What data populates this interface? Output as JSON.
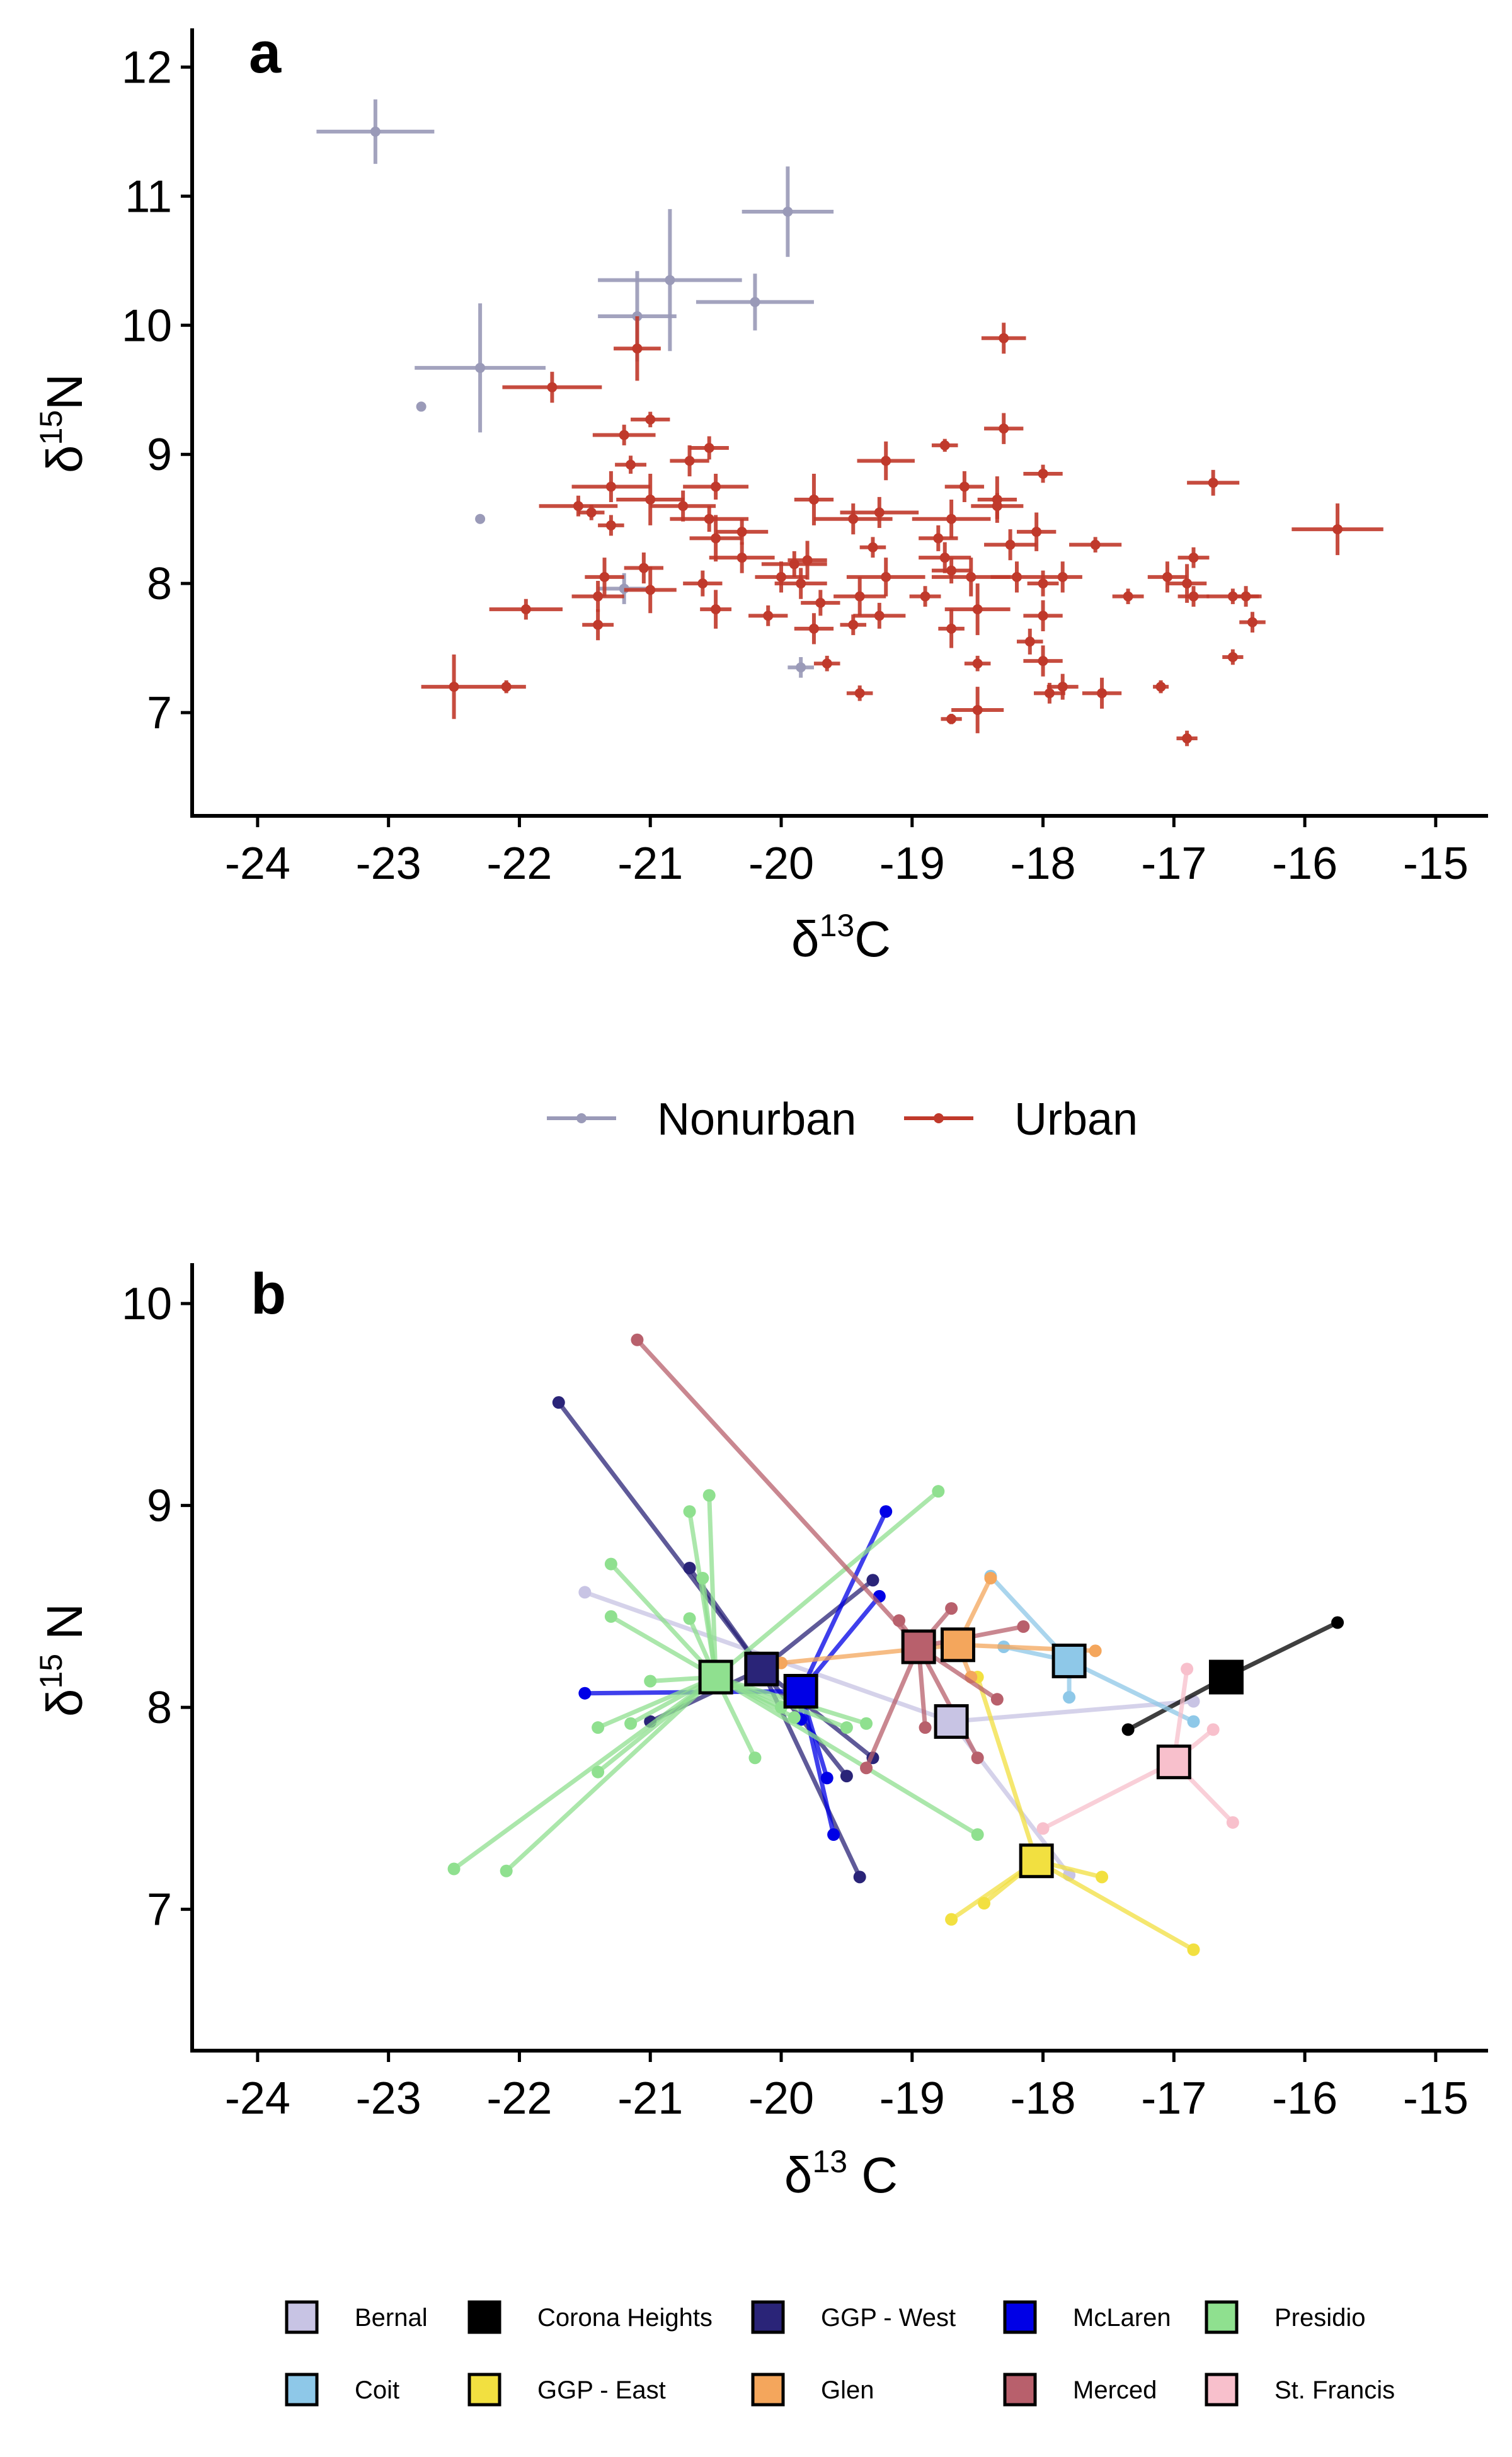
{
  "chart_data": [
    {
      "panel": "a",
      "type": "scatter",
      "xlabel": "δ13C",
      "ylabel": "δ15N",
      "xlim": [
        -24.5,
        -14.6
      ],
      "ylim": [
        6.2,
        12.3
      ],
      "xticks": [
        -24,
        -23,
        -22,
        -21,
        -20,
        -19,
        -18,
        -17,
        -16,
        -15
      ],
      "yticks": [
        7,
        8,
        9,
        10,
        11,
        12
      ],
      "legend": {
        "position": "bottom",
        "entries": [
          "Nonurban",
          "Urban"
        ]
      },
      "series": [
        {
          "name": "Nonurban",
          "color": "#9a9ab8",
          "points": [
            [
              -23.1,
              11.5,
              0.45,
              0.25
            ],
            [
              -22.3,
              9.67,
              0.5,
              0.5
            ],
            [
              -22.75,
              9.37,
              0,
              0
            ],
            [
              -22.3,
              8.5,
              0,
              0
            ],
            [
              -21.1,
              10.07,
              0.3,
              0.35
            ],
            [
              -20.85,
              10.35,
              0.55,
              0.55
            ],
            [
              -20.2,
              10.18,
              0.45,
              0.22
            ],
            [
              -19.95,
              10.88,
              0.35,
              0.35
            ],
            [
              -21.2,
              7.96,
              0.2,
              0.12
            ],
            [
              -19.85,
              7.35,
              0.1,
              0.08
            ]
          ]
        },
        {
          "name": "Urban",
          "color": "#c0392b",
          "points": [
            [
              -21.1,
              9.82,
              0.18,
              0.25
            ],
            [
              -21.75,
              9.52,
              0.38,
              0.12
            ],
            [
              -18.3,
              9.9,
              0.17,
              0.12
            ],
            [
              -21.2,
              9.15,
              0.24,
              0.08
            ],
            [
              -21.0,
              9.27,
              0.15,
              0.06
            ],
            [
              -21.15,
              8.92,
              0.12,
              0.07
            ],
            [
              -21.3,
              8.75,
              0.3,
              0.12
            ],
            [
              -21.0,
              8.65,
              0.26,
              0.2
            ],
            [
              -21.55,
              8.6,
              0.3,
              0.08
            ],
            [
              -21.45,
              8.55,
              0.1,
              0.06
            ],
            [
              -21.3,
              8.45,
              0.1,
              0.08
            ],
            [
              -21.35,
              8.05,
              0.15,
              0.15
            ],
            [
              -21.4,
              7.9,
              0.2,
              0.12
            ],
            [
              -21.4,
              7.68,
              0.12,
              0.12
            ],
            [
              -21.0,
              7.95,
              0.2,
              0.18
            ],
            [
              -21.05,
              8.12,
              0.15,
              0.12
            ],
            [
              -20.7,
              8.95,
              0.15,
              0.12
            ],
            [
              -20.55,
              9.05,
              0.15,
              0.09
            ],
            [
              -20.5,
              8.75,
              0.25,
              0.1
            ],
            [
              -20.75,
              8.6,
              0.25,
              0.12
            ],
            [
              -20.55,
              8.5,
              0.3,
              0.1
            ],
            [
              -20.3,
              8.4,
              0.2,
              0.1
            ],
            [
              -20.5,
              8.35,
              0.2,
              0.18
            ],
            [
              -20.3,
              8.2,
              0.25,
              0.12
            ],
            [
              -20.6,
              8.0,
              0.15,
              0.1
            ],
            [
              -20.5,
              7.8,
              0.12,
              0.15
            ],
            [
              -20.1,
              7.75,
              0.15,
              0.08
            ],
            [
              -20.0,
              8.05,
              0.2,
              0.12
            ],
            [
              -19.9,
              8.15,
              0.25,
              0.1
            ],
            [
              -19.85,
              8.0,
              0.2,
              0.12
            ],
            [
              -19.75,
              8.65,
              0.15,
              0.2
            ],
            [
              -19.8,
              8.18,
              0.15,
              0.15
            ],
            [
              -19.7,
              7.85,
              0.15,
              0.1
            ],
            [
              -19.75,
              7.65,
              0.15,
              0.12
            ],
            [
              -19.65,
              7.38,
              0.1,
              0.06
            ],
            [
              -19.45,
              8.5,
              0.3,
              0.12
            ],
            [
              -19.25,
              8.55,
              0.3,
              0.12
            ],
            [
              -19.2,
              8.95,
              0.22,
              0.15
            ],
            [
              -19.3,
              8.28,
              0.1,
              0.08
            ],
            [
              -19.2,
              8.05,
              0.3,
              0.15
            ],
            [
              -19.4,
              7.9,
              0.2,
              0.15
            ],
            [
              -19.25,
              7.75,
              0.2,
              0.1
            ],
            [
              -19.45,
              7.68,
              0.1,
              0.08
            ],
            [
              -19.4,
              7.15,
              0.1,
              0.06
            ],
            [
              -18.9,
              7.9,
              0.12,
              0.08
            ],
            [
              -18.75,
              9.07,
              0.1,
              0.05
            ],
            [
              -18.6,
              8.75,
              0.15,
              0.12
            ],
            [
              -18.7,
              8.5,
              0.3,
              0.15
            ],
            [
              -18.8,
              8.35,
              0.15,
              0.1
            ],
            [
              -18.75,
              8.2,
              0.2,
              0.12
            ],
            [
              -18.7,
              8.1,
              0.15,
              0.1
            ],
            [
              -18.55,
              8.05,
              0.3,
              0.15
            ],
            [
              -18.7,
              7.65,
              0.1,
              0.15
            ],
            [
              -18.5,
              7.8,
              0.25,
              0.2
            ],
            [
              -18.5,
              7.38,
              0.1,
              0.06
            ],
            [
              -18.5,
              7.02,
              0.2,
              0.18
            ],
            [
              -18.7,
              6.95,
              0.08,
              0.04
            ],
            [
              -18.35,
              8.65,
              0.15,
              0.18
            ],
            [
              -18.3,
              9.2,
              0.15,
              0.12
            ],
            [
              -18.25,
              8.3,
              0.2,
              0.12
            ],
            [
              -18.35,
              8.6,
              0.2,
              0.1
            ],
            [
              -18.2,
              8.05,
              0.2,
              0.12
            ],
            [
              -18.0,
              8.85,
              0.15,
              0.07
            ],
            [
              -18.05,
              8.4,
              0.15,
              0.15
            ],
            [
              -18.0,
              8.0,
              0.12,
              0.1
            ],
            [
              -18.0,
              7.75,
              0.15,
              0.12
            ],
            [
              -18.1,
              7.55,
              0.1,
              0.1
            ],
            [
              -18.0,
              7.4,
              0.15,
              0.12
            ],
            [
              -17.95,
              7.15,
              0.12,
              0.08
            ],
            [
              -17.85,
              8.05,
              0.15,
              0.12
            ],
            [
              -17.85,
              7.2,
              0.12,
              0.1
            ],
            [
              -17.6,
              8.3,
              0.2,
              0.06
            ],
            [
              -17.55,
              7.15,
              0.15,
              0.12
            ],
            [
              -17.35,
              7.9,
              0.12,
              0.06
            ],
            [
              -17.1,
              7.2,
              0.06,
              0.05
            ],
            [
              -17.05,
              8.05,
              0.15,
              0.12
            ],
            [
              -16.9,
              8.0,
              0.15,
              0.15
            ],
            [
              -16.85,
              8.2,
              0.12,
              0.08
            ],
            [
              -16.85,
              7.9,
              0.12,
              0.08
            ],
            [
              -16.7,
              8.78,
              0.2,
              0.1
            ],
            [
              -16.55,
              7.9,
              0.2,
              0.06
            ],
            [
              -16.45,
              7.9,
              0.12,
              0.08
            ],
            [
              -16.4,
              7.7,
              0.1,
              0.08
            ],
            [
              -16.55,
              7.43,
              0.08,
              0.06
            ],
            [
              -16.9,
              6.8,
              0.08,
              0.06
            ],
            [
              -15.75,
              8.42,
              0.35,
              0.2
            ],
            [
              -22.5,
              7.2,
              0.25,
              0.25
            ],
            [
              -22.1,
              7.2,
              0.15,
              0.05
            ],
            [
              -21.95,
              7.8,
              0.28,
              0.08
            ]
          ]
        }
      ]
    },
    {
      "panel": "b",
      "type": "scatter",
      "xlabel": "δ13 C",
      "ylabel": "δ15 N",
      "xlim": [
        -24.5,
        -14.6
      ],
      "ylim": [
        6.3,
        10.2
      ],
      "xticks": [
        -24,
        -23,
        -22,
        -21,
        -20,
        -19,
        -18,
        -17,
        -16,
        -15
      ],
      "yticks": [
        7,
        8,
        9,
        10
      ],
      "legend": {
        "position": "bottom"
      },
      "groups": [
        {
          "name": "Bernal",
          "color": "#c8c4e4",
          "centroid": [
            -18.7,
            7.93
          ],
          "points": [
            [
              -21.5,
              8.57
            ],
            [
              -16.85,
              8.03
            ],
            [
              -17.8,
              7.17
            ]
          ]
        },
        {
          "name": "Corona Heights",
          "color": "#000000",
          "centroid": [
            -16.6,
            8.15
          ],
          "points": [
            [
              -15.75,
              8.42
            ],
            [
              -17.35,
              7.89
            ]
          ]
        },
        {
          "name": "GGP - West",
          "color": "#2a2478",
          "centroid": [
            -20.15,
            8.19
          ],
          "points": [
            [
              -21.7,
              9.51
            ],
            [
              -20.7,
              8.69
            ],
            [
              -21.0,
              7.93
            ],
            [
              -19.3,
              8.63
            ],
            [
              -19.3,
              7.75
            ],
            [
              -19.5,
              7.66
            ],
            [
              -19.4,
              7.16
            ]
          ]
        },
        {
          "name": "McLaren",
          "color": "#0000e6",
          "centroid": [
            -19.85,
            8.08
          ],
          "points": [
            [
              -19.2,
              8.97
            ],
            [
              -19.25,
              8.55
            ],
            [
              -21.5,
              8.07
            ],
            [
              -19.85,
              7.94
            ],
            [
              -19.65,
              7.65
            ],
            [
              -19.6,
              7.37
            ]
          ]
        },
        {
          "name": "Presidio",
          "color": "#8fe08f",
          "centroid": [
            -20.5,
            8.15
          ],
          "points": [
            [
              -18.8,
              9.07
            ],
            [
              -20.55,
              9.05
            ],
            [
              -20.7,
              8.97
            ],
            [
              -21.3,
              8.71
            ],
            [
              -20.6,
              8.64
            ],
            [
              -21.3,
              8.45
            ],
            [
              -20.7,
              8.44
            ],
            [
              -21.0,
              8.13
            ],
            [
              -21.15,
              7.92
            ],
            [
              -21.4,
              7.9
            ],
            [
              -21.4,
              7.68
            ],
            [
              -20.2,
              7.75
            ],
            [
              -19.9,
              7.95
            ],
            [
              -19.5,
              7.9
            ],
            [
              -19.35,
              7.92
            ],
            [
              -18.5,
              7.37
            ],
            [
              -22.5,
              7.2
            ],
            [
              -22.1,
              7.19
            ],
            [
              -20.0,
              8.0
            ]
          ]
        },
        {
          "name": "Coit",
          "color": "#8ec8e8",
          "centroid": [
            -17.8,
            8.23
          ],
          "points": [
            [
              -18.4,
              8.65
            ],
            [
              -18.3,
              8.3
            ],
            [
              -17.8,
              8.05
            ],
            [
              -16.85,
              7.93
            ]
          ]
        },
        {
          "name": "GGP - East",
          "color": "#f2e040",
          "centroid": [
            -18.05,
            7.24
          ],
          "points": [
            [
              -18.7,
              6.95
            ],
            [
              -18.45,
              7.03
            ],
            [
              -17.55,
              7.16
            ],
            [
              -16.85,
              6.8
            ],
            [
              -18.5,
              8.15
            ]
          ]
        },
        {
          "name": "Glen",
          "color": "#f4a65c",
          "centroid": [
            -18.65,
            8.31
          ],
          "points": [
            [
              -18.4,
              8.64
            ],
            [
              -18.55,
              8.15
            ],
            [
              -17.6,
              8.28
            ],
            [
              -20.0,
              8.22
            ]
          ]
        },
        {
          "name": "Merced",
          "color": "#b8606c",
          "centroid": [
            -18.95,
            8.3
          ],
          "points": [
            [
              -21.1,
              9.82
            ],
            [
              -19.1,
              8.43
            ],
            [
              -18.7,
              8.49
            ],
            [
              -18.15,
              8.4
            ],
            [
              -18.9,
              7.9
            ],
            [
              -19.35,
              7.7
            ],
            [
              -18.5,
              7.75
            ],
            [
              -18.35,
              8.04
            ]
          ]
        },
        {
          "name": "St. Francis",
          "color": "#f8c0cc",
          "centroid": [
            -17.0,
            7.73
          ],
          "points": [
            [
              -16.9,
              8.19
            ],
            [
              -16.7,
              7.89
            ],
            [
              -16.55,
              7.43
            ],
            [
              -18.0,
              7.4
            ]
          ]
        }
      ]
    }
  ],
  "panel_a": {
    "tag": "a",
    "xlabel_main": "δ",
    "xlabel_sup": "13",
    "xlabel_tail": "C",
    "ylabel_main": "δ",
    "ylabel_sup": "15",
    "ylabel_tail": "N"
  },
  "panel_b": {
    "tag": "b",
    "xlabel_main": "δ",
    "xlabel_sup": "13",
    "xlabel_tail": " C",
    "ylabel_main": "δ",
    "ylabel_sup": "15",
    "ylabel_tail": " N"
  }
}
